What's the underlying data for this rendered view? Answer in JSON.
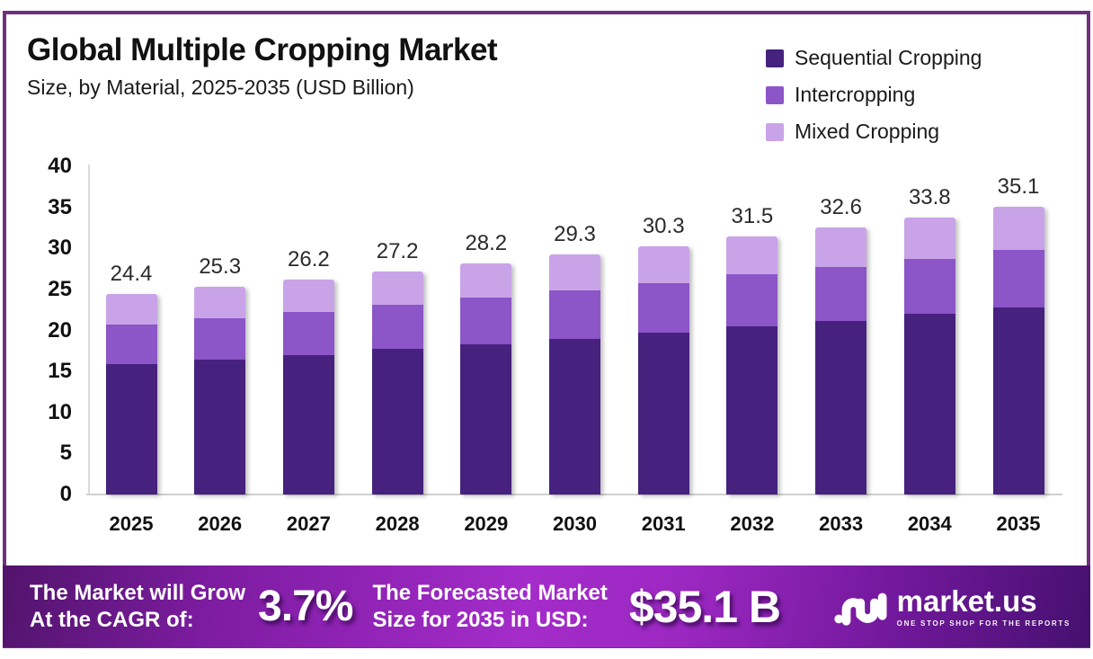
{
  "page": {
    "border_color": "#703080",
    "background": "#ffffff"
  },
  "header": {
    "title": "Global Multiple Cropping Market",
    "subtitle": "Size, by Material, 2025-2035 (USD Billion)"
  },
  "legend": [
    {
      "label": "Sequential Cropping",
      "color": "#46217E"
    },
    {
      "label": "Intercropping",
      "color": "#8C55C8"
    },
    {
      "label": "Mixed Cropping",
      "color": "#C9A3E8"
    }
  ],
  "chart_data": {
    "type": "bar",
    "stacked": true,
    "title": "Global Multiple Cropping Market Size, by Material, 2025-2035 (USD Billion)",
    "categories": [
      "2025",
      "2026",
      "2027",
      "2028",
      "2029",
      "2030",
      "2031",
      "2032",
      "2033",
      "2034",
      "2035"
    ],
    "series": [
      {
        "name": "Sequential Cropping",
        "color": "#46217E",
        "values": [
          15.9,
          16.4,
          17.0,
          17.7,
          18.3,
          19.0,
          19.7,
          20.5,
          21.2,
          22.0,
          22.8
        ]
      },
      {
        "name": "Intercropping",
        "color": "#8C55C8",
        "values": [
          4.8,
          5.1,
          5.3,
          5.4,
          5.7,
          5.9,
          6.1,
          6.3,
          6.5,
          6.7,
          7.0
        ]
      },
      {
        "name": "Mixed Cropping",
        "color": "#C9A3E8",
        "values": [
          3.7,
          3.8,
          3.9,
          4.1,
          4.2,
          4.4,
          4.5,
          4.7,
          4.9,
          5.1,
          5.3
        ]
      }
    ],
    "totals": [
      24.4,
      25.3,
      26.2,
      27.2,
      28.2,
      29.3,
      30.3,
      31.5,
      32.6,
      33.8,
      35.1
    ],
    "xlabel": "",
    "ylabel": "",
    "ylim": [
      0,
      40
    ],
    "yticks": [
      0,
      5,
      10,
      15,
      20,
      25,
      30,
      35,
      40
    ],
    "grid": false,
    "legend_position": "top-right"
  },
  "banner": {
    "cagr_label_line1": "The Market will Grow",
    "cagr_label_line2": "At the CAGR of:",
    "cagr_value": "3.7%",
    "forecast_label_line1": "The Forecasted Market",
    "forecast_label_line2": "Size for 2035 in USD:",
    "forecast_value": "$35.1 B",
    "logo_text": "market.us",
    "logo_tagline": "ONE STOP SHOP FOR THE REPORTS"
  }
}
